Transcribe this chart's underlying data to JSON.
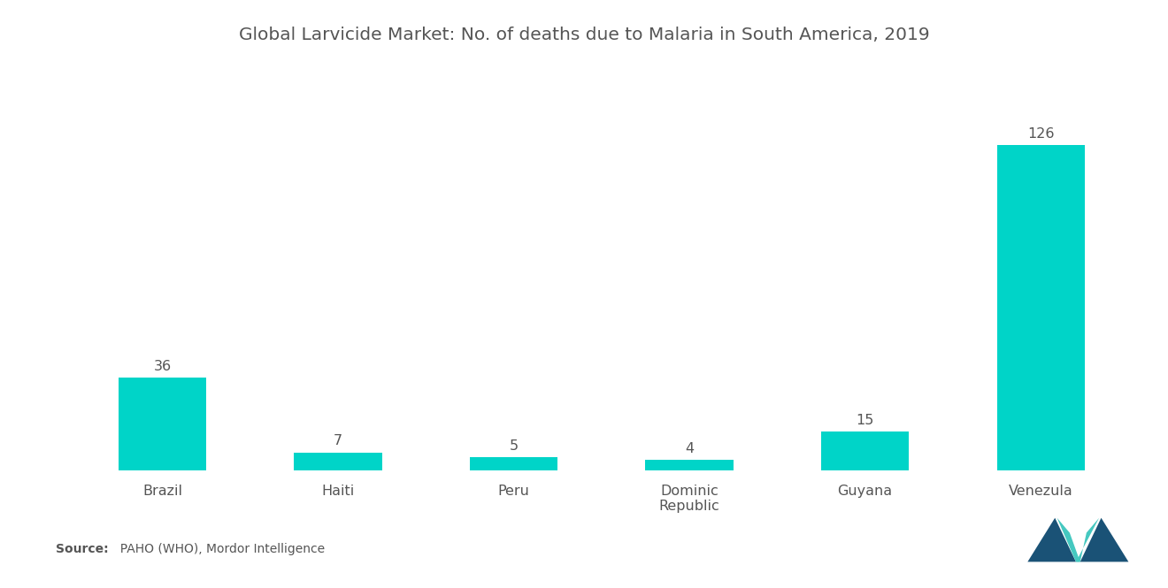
{
  "title": "Global Larvicide Market: No. of deaths due to Malaria in South America, 2019",
  "categories": [
    "Brazil",
    "Haiti",
    "Peru",
    "Dominic\nRepublic",
    "Guyana",
    "Venezula"
  ],
  "values": [
    36,
    7,
    5,
    4,
    15,
    126
  ],
  "bar_color": "#00D4C8",
  "background_color": "#FFFFFF",
  "title_fontsize": 14.5,
  "label_fontsize": 11.5,
  "value_fontsize": 11.5,
  "source_bold": "Source:",
  "source_rest": "  PAHO (WHO), Mordor Intelligence",
  "ylim": [
    0,
    148
  ],
  "logo_dark": "#1a5276",
  "logo_teal": "#45c8c0"
}
